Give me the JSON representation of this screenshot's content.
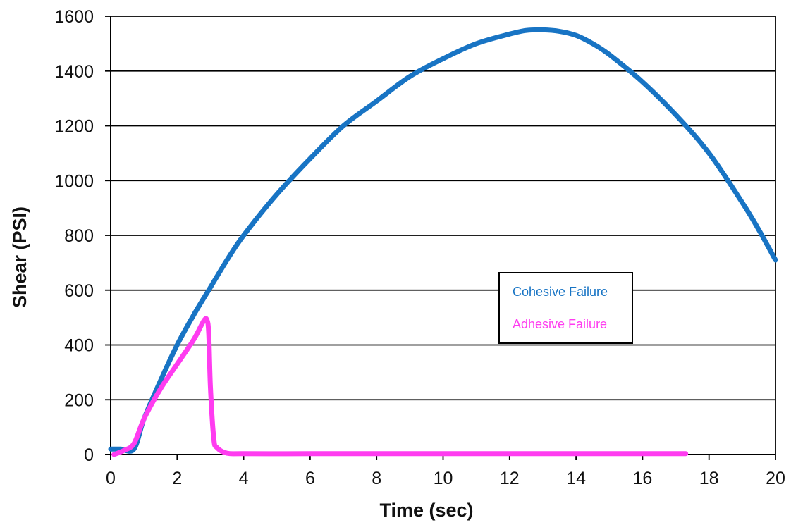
{
  "chart_data": {
    "type": "line",
    "xlabel": "Time (sec)",
    "ylabel": "Shear (PSI)",
    "xlim": [
      0,
      20
    ],
    "ylim": [
      0,
      1600
    ],
    "xticks": [
      0,
      2,
      4,
      6,
      8,
      10,
      12,
      14,
      16,
      18,
      20
    ],
    "yticks": [
      0,
      200,
      400,
      600,
      800,
      1000,
      1200,
      1400,
      1600
    ],
    "grid": "horizontal",
    "legend_position": "center-right",
    "series": [
      {
        "name": "Cohesive Failure",
        "color": "#1874C4",
        "x": [
          0,
          0.3,
          0.7,
          1.0,
          1.5,
          2.0,
          2.5,
          3.0,
          3.5,
          4.0,
          5.0,
          6.0,
          7.0,
          8.0,
          9.0,
          10.0,
          11.0,
          12.0,
          12.5,
          13.0,
          13.5,
          14.0,
          14.5,
          15.0,
          16.0,
          17.0,
          18.0,
          19.0,
          19.5,
          20.0
        ],
        "y": [
          20,
          20,
          20,
          130,
          270,
          400,
          510,
          610,
          710,
          800,
          950,
          1080,
          1200,
          1290,
          1380,
          1445,
          1500,
          1535,
          1548,
          1550,
          1545,
          1530,
          1500,
          1460,
          1360,
          1240,
          1100,
          920,
          820,
          710
        ]
      },
      {
        "name": "Adhesive Failure",
        "color": "#FF3CF0",
        "x": [
          0.1,
          0.4,
          0.7,
          1.0,
          1.5,
          2.0,
          2.5,
          2.8,
          2.9,
          2.95,
          3.0,
          3.1,
          3.2,
          3.5,
          4.0,
          6.0,
          8.0,
          10.0,
          12.0,
          14.0,
          16.0,
          17.3
        ],
        "y": [
          0,
          15,
          40,
          130,
          240,
          330,
          420,
          488,
          490,
          440,
          250,
          60,
          25,
          5,
          3,
          3,
          3,
          3,
          3,
          3,
          3,
          3
        ]
      }
    ]
  }
}
